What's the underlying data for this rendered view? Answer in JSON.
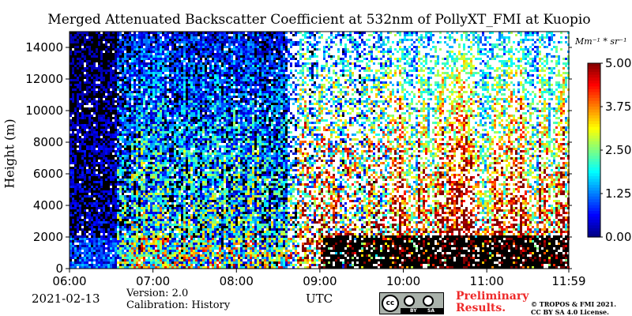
{
  "title": "Merged Attenuated Backscatter Coefficient at 532nm of PollyXT_FMI at Kuopio",
  "ylabel": "Height (m)",
  "unit_label": "Mm⁻¹ * sr⁻¹",
  "date": "2021-02-13",
  "version": "Version: 2.0",
  "calibration": "Calibration: History",
  "xunit": "UTC",
  "preliminary_line1": "Preliminary",
  "preliminary_line2": "Results.",
  "license_line1": "© TROPOS & FMI 2021.",
  "license_line2": "CC BY SA 4.0 License.",
  "cc_badge": {
    "cc": "cc",
    "by": "BY",
    "sa": "SA"
  },
  "colors": {
    "background_signal": "#000000",
    "no_data": "#ffffff",
    "colormap": "jet"
  },
  "chart_data": {
    "type": "heatmap",
    "x_ticks": [
      "06:00",
      "07:00",
      "08:00",
      "09:00",
      "10:00",
      "11:00",
      "11:59"
    ],
    "x_tick_hours": [
      6,
      7,
      8,
      9,
      10,
      11,
      11.983
    ],
    "xlim_hours": [
      6,
      11.983
    ],
    "y_ticks": [
      0,
      2000,
      4000,
      6000,
      8000,
      10000,
      12000,
      14000
    ],
    "ylim": [
      0,
      15000
    ],
    "colorbar": {
      "ticks": [
        "0.00",
        "1.25",
        "2.50",
        "3.75",
        "5.00"
      ],
      "range": [
        0,
        5
      ]
    },
    "regions": [
      {
        "from_h": 6.0,
        "to_h": 6.55,
        "from_m": 0,
        "to_m": 15000,
        "base": 0.2,
        "noise": 0.6
      },
      {
        "from_h": 6.55,
        "to_h": 8.7,
        "from_m": 0,
        "to_m": 15000,
        "base": 1.3,
        "noise": 1.6
      },
      {
        "from_h": 8.7,
        "to_h": 9.85,
        "from_m": 0,
        "to_m": 15000,
        "base": 2.8,
        "noise": 2.2
      },
      {
        "from_h": 9.85,
        "to_h": 11.983,
        "from_m": 0,
        "to_m": 15000,
        "base": 3.6,
        "noise": 1.4
      }
    ],
    "boundary_layer_top_m": 2000,
    "grid": false
  }
}
